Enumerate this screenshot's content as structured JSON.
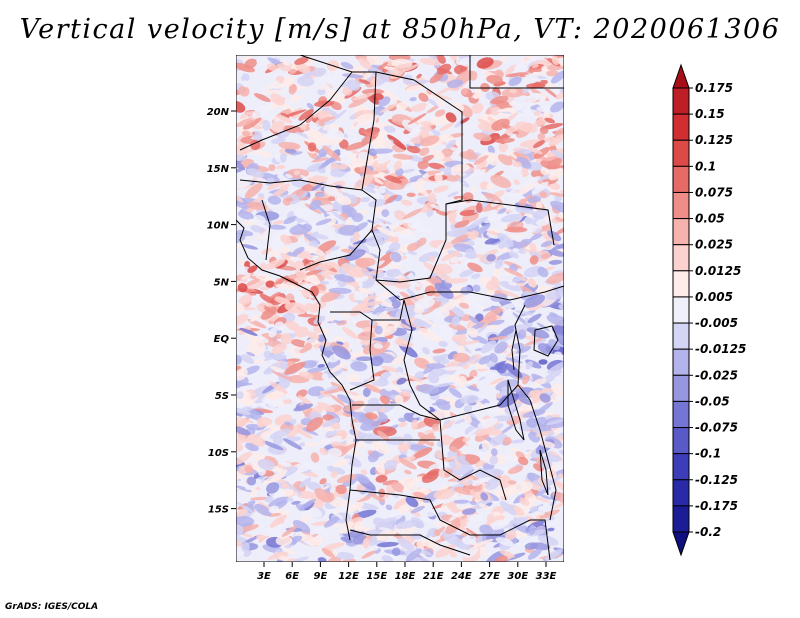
{
  "title": "Vertical velocity [m/s] at 850hPa, VT: 2020061306",
  "credit": "GrADS: IGES/COLA",
  "map": {
    "lon_labels": [
      "3E",
      "6E",
      "9E",
      "12E",
      "15E",
      "18E",
      "21E",
      "24E",
      "27E",
      "30E",
      "33E"
    ],
    "lat_labels": [
      "20N",
      "15N",
      "10N",
      "5N",
      "EQ",
      "5S",
      "10S",
      "15S"
    ]
  },
  "colorbar": {
    "labels": [
      "0.175",
      "0.15",
      "0.125",
      "0.1",
      "0.075",
      "0.05",
      "0.025",
      "0.0125",
      "0.005",
      "-0.005",
      "-0.0125",
      "-0.025",
      "-0.05",
      "-0.075",
      "-0.1",
      "-0.125",
      "-0.175",
      "-0.2"
    ],
    "colors": [
      "#a50f15",
      "#be1e26",
      "#d02e31",
      "#dc4a48",
      "#e66b66",
      "#ef8e88",
      "#f6b2ad",
      "#fbd2cf",
      "#feecea",
      "#f0f0fb",
      "#d4d4f4",
      "#b4b4ec",
      "#9797e1",
      "#7575d5",
      "#5959c8",
      "#3d3db9",
      "#2a2aa8",
      "#1c1c96",
      "#0f0f80"
    ]
  }
}
